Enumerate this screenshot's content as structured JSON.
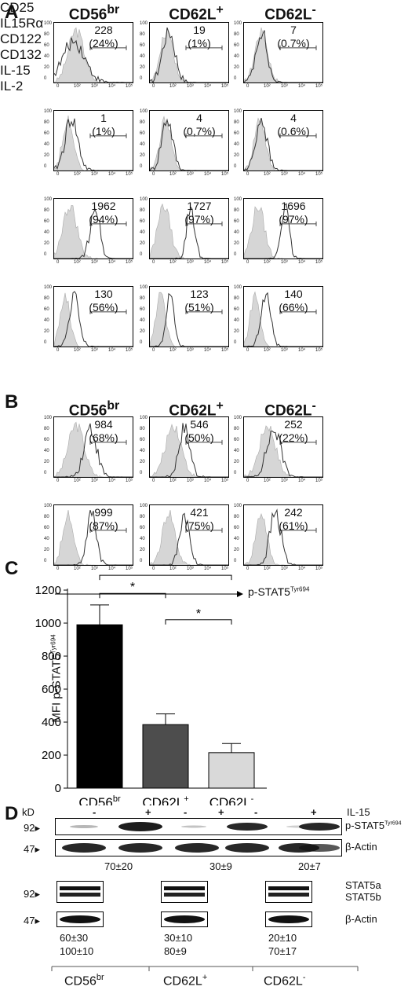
{
  "panels": {
    "A": "A",
    "B": "B",
    "C": "C",
    "D": "D"
  },
  "flow": {
    "col_headers": [
      {
        "main": "CD56",
        "sup": "br"
      },
      {
        "main": "CD62L",
        "sup": "+"
      },
      {
        "main": "CD62L",
        "sup": "-"
      }
    ],
    "y_ticks": [
      "100",
      "80",
      "60",
      "40",
      "20",
      "0"
    ],
    "x_ticks": [
      "0",
      "10²",
      "10³",
      "10⁴",
      "10⁵"
    ],
    "panel_A_rows": [
      {
        "label": "CD25",
        "cells": [
          {
            "mfi": "228",
            "pct": "(24%)"
          },
          {
            "mfi": "19",
            "pct": "(1%)"
          },
          {
            "mfi": "7",
            "pct": "(0.7%)"
          }
        ]
      },
      {
        "label": "IL15Rα",
        "cells": [
          {
            "mfi": "1",
            "pct": "(1%)"
          },
          {
            "mfi": "4",
            "pct": "(0,7%)"
          },
          {
            "mfi": "4",
            "pct": "(0.6%)"
          }
        ]
      },
      {
        "label": "CD122",
        "cells": [
          {
            "mfi": "1962",
            "pct": "(94%)"
          },
          {
            "mfi": "1727",
            "pct": "(97%)"
          },
          {
            "mfi": "1696",
            "pct": "(97%)"
          }
        ]
      },
      {
        "label": "CD132",
        "cells": [
          {
            "mfi": "130",
            "pct": "(56%)"
          },
          {
            "mfi": "123",
            "pct": "(51%)"
          },
          {
            "mfi": "140",
            "pct": "(66%)"
          }
        ]
      }
    ],
    "panel_B_rows": [
      {
        "label": "IL-15",
        "cells": [
          {
            "mfi": "984",
            "pct": "(68%)"
          },
          {
            "mfi": "546",
            "pct": "(50%)"
          },
          {
            "mfi": "252",
            "pct": "(22%)"
          }
        ]
      },
      {
        "label": "IL-2",
        "cells": [
          {
            "mfi": "999",
            "pct": "(87%)"
          },
          {
            "mfi": "421",
            "pct": "(75%)"
          },
          {
            "mfi": "242",
            "pct": "(61%)"
          }
        ]
      }
    ],
    "panel_B_axis": {
      "main": "p-STAT5",
      "sup": "Tyr694"
    }
  },
  "chart_data": {
    "type": "bar",
    "categories": [
      "CD56br",
      "CD62L+",
      "CD62L-"
    ],
    "category_labels": [
      {
        "main": "CD56",
        "sup": "br"
      },
      {
        "main": "CD62L",
        "sup": "+"
      },
      {
        "main": "CD62L",
        "sup": "-"
      }
    ],
    "values": [
      990,
      385,
      215
    ],
    "errors": [
      120,
      65,
      55
    ],
    "colors": [
      "#000000",
      "#4d4d4d",
      "#d9d9d9"
    ],
    "ylabel_main": "MFI p-STAT5",
    "ylabel_sup": "Tyr694",
    "ylim": [
      0,
      1200
    ],
    "y_ticks": [
      0,
      200,
      400,
      600,
      800,
      1000,
      1200
    ],
    "significance": [
      {
        "from": 0,
        "to": 1,
        "label": "*"
      },
      {
        "from": 0,
        "to": 2,
        "label": "*"
      },
      {
        "from": 1,
        "to": 2,
        "label": "*"
      }
    ]
  },
  "western": {
    "kd_label": "kD",
    "treatment_label": "IL-15",
    "signs": [
      "-",
      "+",
      "-",
      "+",
      "-",
      "+"
    ],
    "mw_92": "92",
    "mw_47": "47",
    "pstat_label": {
      "main": "p-STAT5",
      "sup": "Tyr694"
    },
    "actin_label": "β-Actin",
    "stat5a_label": "STAT5a",
    "stat5b_label": "STAT5b",
    "ratios_top": [
      "70±20",
      "30±9",
      "20±7"
    ],
    "ratios_bottom_a": [
      "60±30",
      "30±10",
      "20±10"
    ],
    "ratios_bottom_b": [
      "100±10",
      "80±9",
      "70±17"
    ],
    "group_labels": [
      {
        "main": "CD56",
        "sup": "br"
      },
      {
        "main": "CD62L",
        "sup": "+"
      },
      {
        "main": "CD62L",
        "sup": "-"
      }
    ]
  }
}
